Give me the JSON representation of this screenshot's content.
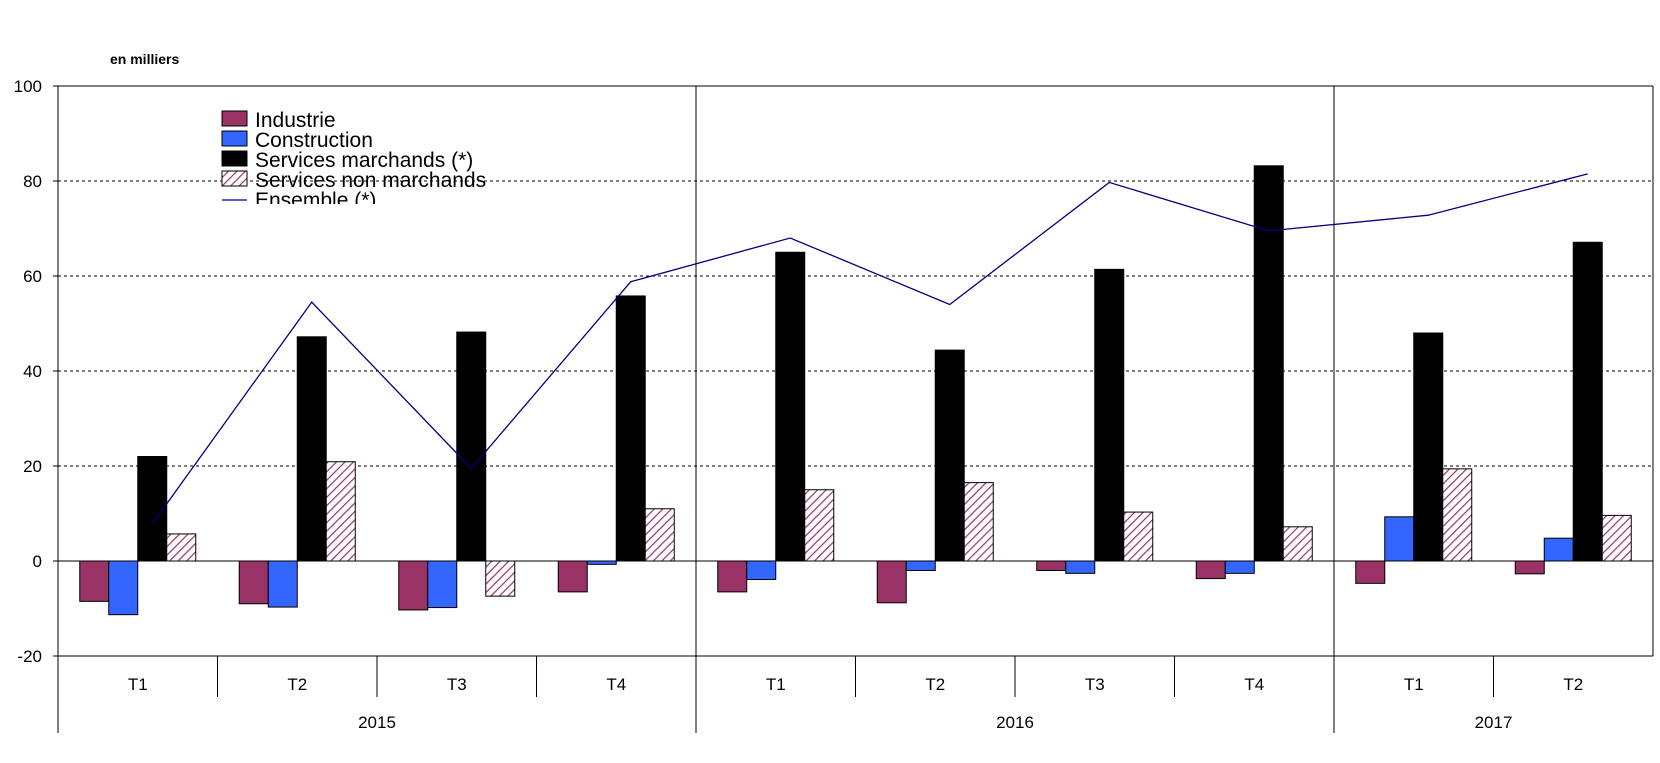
{
  "chart_data": {
    "type": "bar",
    "unit_label": "en milliers",
    "ylim": [
      -20,
      100
    ],
    "yticks": [
      -20,
      0,
      20,
      40,
      60,
      80,
      100
    ],
    "grid": "dashed horizontal at 20, 40, 60, 80",
    "legend_position": "top-left",
    "quarters": [
      "T1",
      "T2",
      "T3",
      "T4",
      "T1",
      "T2",
      "T3",
      "T4",
      "T1",
      "T2"
    ],
    "years": [
      {
        "label": "2015",
        "span": 4
      },
      {
        "label": "2016",
        "span": 4
      },
      {
        "label": "2017",
        "span": 2
      }
    ],
    "series": [
      {
        "name": "Industrie",
        "kind": "bar",
        "color": "#993366",
        "pattern": "solid",
        "values": [
          -8.5,
          -9,
          -10.3,
          -6.5,
          -6.5,
          -8.8,
          -2,
          -3.7,
          -4.7,
          -2.7
        ]
      },
      {
        "name": "Construction",
        "kind": "bar",
        "color": "#3366FF",
        "pattern": "solid",
        "values": [
          -11.3,
          -9.7,
          -9.8,
          -0.7,
          -3.9,
          -2,
          -2.6,
          -2.6,
          9.3,
          4.8
        ]
      },
      {
        "name": "Services marchands (*)",
        "kind": "bar",
        "color": "#000000",
        "pattern": "solid",
        "values": [
          22,
          47.2,
          48.2,
          55.8,
          65,
          44.4,
          61.4,
          83.2,
          48,
          67.1
        ]
      },
      {
        "name": "Services non marchands",
        "kind": "bar",
        "color": "#993366",
        "pattern": "hatch",
        "values": [
          5.7,
          20.9,
          -7.4,
          11,
          15,
          16.5,
          10.3,
          7.2,
          19.4,
          9.6
        ]
      },
      {
        "name": "Ensemble (*)",
        "kind": "line",
        "color": "#000080",
        "values": [
          7.8,
          54.5,
          19.5,
          58.8,
          68,
          54,
          79.7,
          69.5,
          72.8,
          81.5
        ]
      }
    ]
  }
}
